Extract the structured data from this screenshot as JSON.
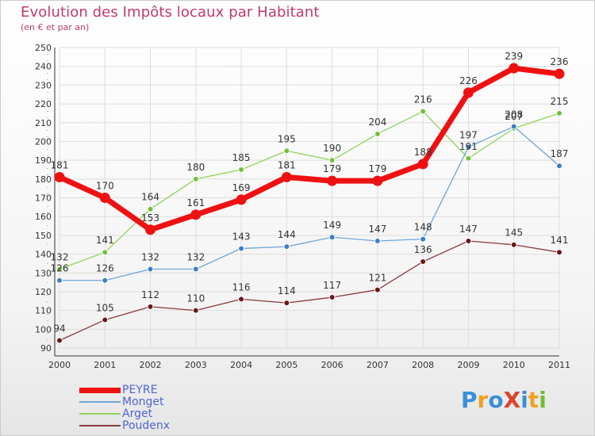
{
  "title": "Evolution des Impôts locaux par Habitant",
  "subtitle": "(en € et par an)",
  "logo": {
    "text": "ProXiti",
    "letters": [
      "P",
      "r",
      "o",
      "X",
      "i",
      "t",
      "i"
    ],
    "colors": [
      "#3a8fd8",
      "#f0a020",
      "#3a8fd8",
      "#e0402c",
      "#3a8fd8",
      "#f0a020",
      "#6cbf2e"
    ]
  },
  "chart_data": {
    "type": "line",
    "title": "Evolution des Impôts locaux par Habitant",
    "subtitle": "(en € et par an)",
    "x": [
      "2000",
      "2001",
      "2002",
      "2003",
      "2004",
      "2005",
      "2006",
      "2007",
      "2008",
      "2009",
      "2010",
      "2011"
    ],
    "ylim": [
      90,
      250
    ],
    "yticks": [
      90,
      100,
      110,
      120,
      130,
      140,
      150,
      160,
      170,
      180,
      190,
      200,
      210,
      220,
      230,
      240,
      250
    ],
    "grid": true,
    "legend_position": "bottom-left",
    "series": [
      {
        "name": "Poudenx",
        "color": "#7a1f1f",
        "values": [
          94,
          105,
          112,
          110,
          116,
          114,
          117,
          121,
          136,
          147,
          145,
          141
        ]
      },
      {
        "name": "Arget",
        "color": "#8fd45a",
        "values": [
          132,
          141,
          164,
          180,
          185,
          195,
          190,
          204,
          216,
          191,
          207,
          215
        ]
      },
      {
        "name": "Monget",
        "color": "#6ea6d8",
        "values": [
          126,
          126,
          132,
          132,
          143,
          144,
          149,
          147,
          148,
          197,
          208,
          187
        ]
      },
      {
        "name": "PEYRE",
        "color": "#ee1111",
        "values": [
          181,
          170,
          153,
          161,
          169,
          181,
          179,
          179,
          188,
          226,
          239,
          236
        ]
      }
    ],
    "value_labels": {
      "Poudenx": [
        "94",
        "105",
        "112",
        "110",
        "116",
        "114",
        "117",
        "121",
        "136",
        "147",
        "145",
        "141"
      ],
      "Arget": [
        "132",
        "141",
        "164",
        "180",
        "185",
        "195",
        "190",
        "204",
        "216",
        "191",
        "207",
        "215"
      ],
      "Monget": [
        "126",
        "126",
        "132",
        "132",
        "143",
        "144",
        "149",
        "147",
        "148",
        "197",
        "208",
        "187"
      ],
      "PEYRE": [
        "181",
        "170",
        "153",
        "161",
        "169",
        "181",
        "179",
        "179",
        "188",
        "226",
        "239",
        "236"
      ]
    },
    "legend": [
      "PEYRE",
      "Monget",
      "Arget",
      "Poudenx"
    ]
  }
}
